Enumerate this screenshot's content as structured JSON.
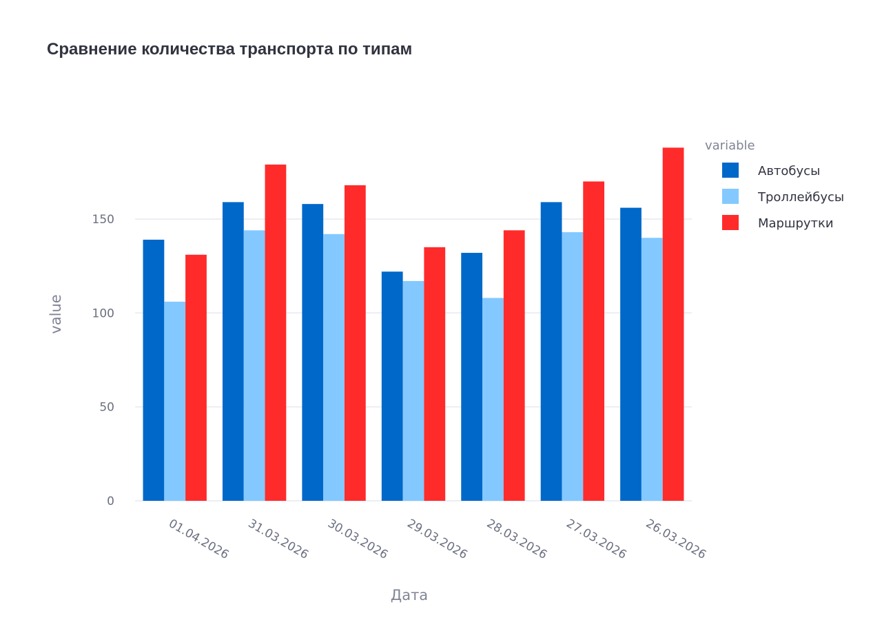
{
  "chart_data": {
    "type": "bar",
    "title": "Сравнение количества транспорта по типам",
    "xlabel": "Дата",
    "ylabel": "value",
    "categories": [
      "01.04.2026",
      "31.03.2026",
      "30.03.2026",
      "29.03.2026",
      "28.03.2026",
      "27.03.2026",
      "26.03.2026"
    ],
    "series": [
      {
        "name": "Автобусы",
        "color": "#0068c9",
        "values": [
          139,
          159,
          158,
          122,
          132,
          159,
          156
        ]
      },
      {
        "name": "Троллейбусы",
        "color": "#83c9ff",
        "values": [
          106,
          144,
          142,
          117,
          108,
          143,
          140
        ]
      },
      {
        "name": "Маршрутки",
        "color": "#ff2b2b",
        "values": [
          131,
          179,
          168,
          135,
          144,
          170,
          188
        ]
      }
    ],
    "legend_title": "variable",
    "legend_placement": "right",
    "ylim": [
      0,
      198
    ],
    "yticks": [
      0,
      50,
      100,
      150
    ],
    "grid": true,
    "barmode": "group"
  }
}
